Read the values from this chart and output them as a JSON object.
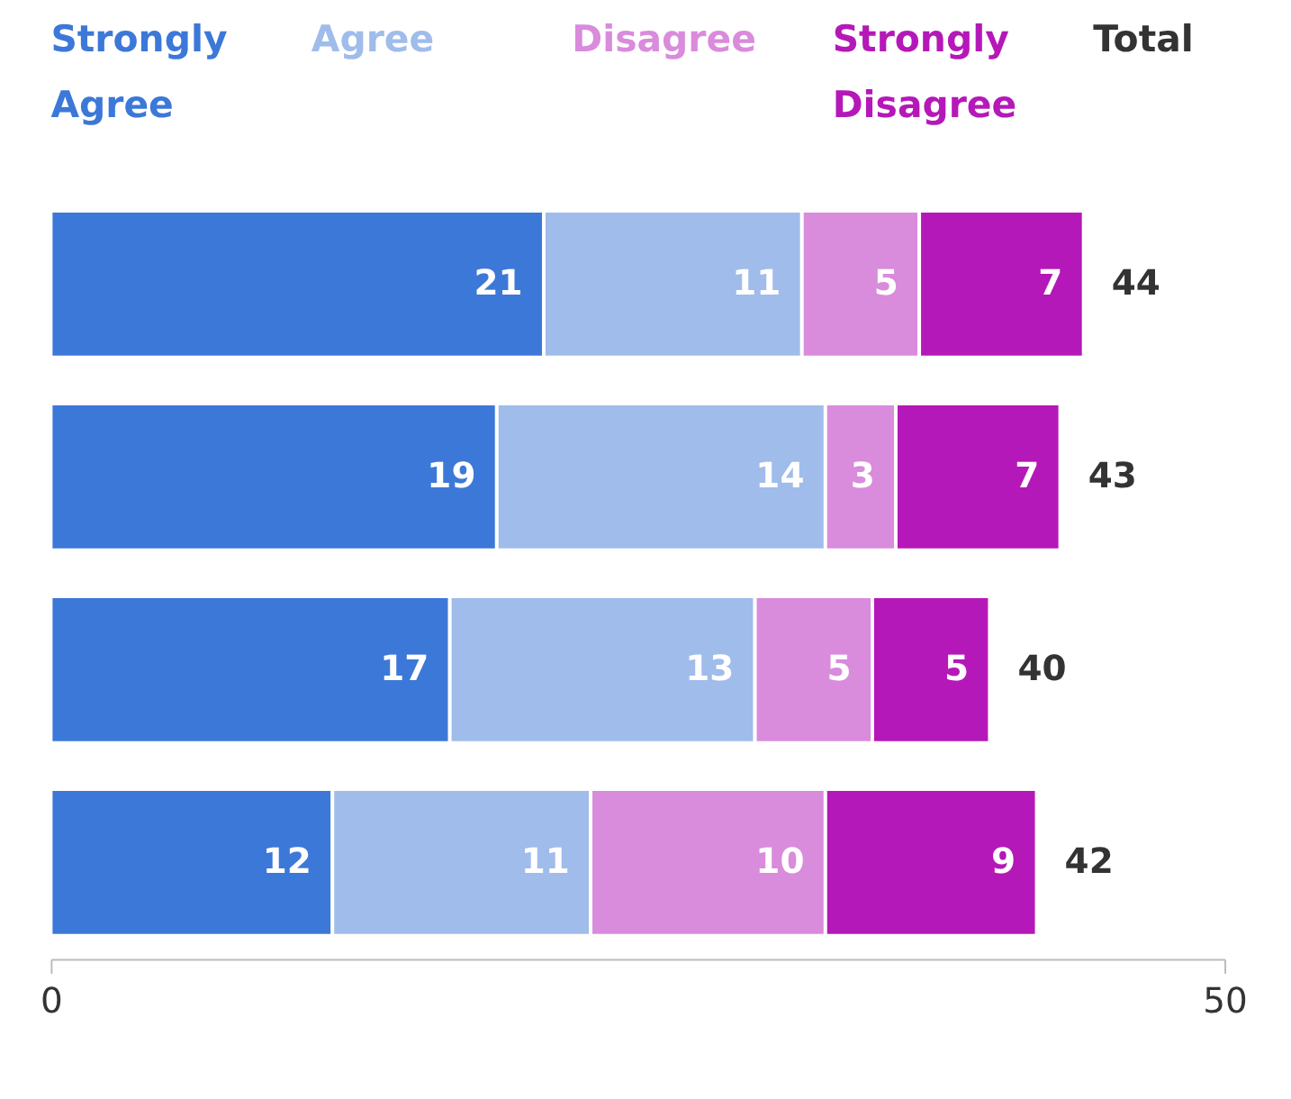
{
  "chart_data": {
    "type": "bar",
    "orientation": "horizontal",
    "stacked": true,
    "categories": [
      null,
      null,
      null,
      null
    ],
    "series": [
      {
        "name": "Strongly Agree",
        "color": "#3c78d8",
        "values": [
          21,
          19,
          17,
          12
        ]
      },
      {
        "name": "Agree",
        "color": "#9fbceb",
        "values": [
          11,
          14,
          13,
          11
        ]
      },
      {
        "name": "Disagree",
        "color": "#d98bdc",
        "values": [
          5,
          3,
          5,
          10
        ]
      },
      {
        "name": "Strongly Disagree",
        "color": "#b518b8",
        "values": [
          7,
          7,
          5,
          9
        ]
      }
    ],
    "xlim": [
      0,
      50
    ],
    "xticks": [
      0,
      50
    ],
    "data_labels": true,
    "totals": [
      "44",
      "43",
      "40",
      "42"
    ],
    "annotations": [
      "Total"
    ],
    "legend": "top",
    "grid": false
  }
}
